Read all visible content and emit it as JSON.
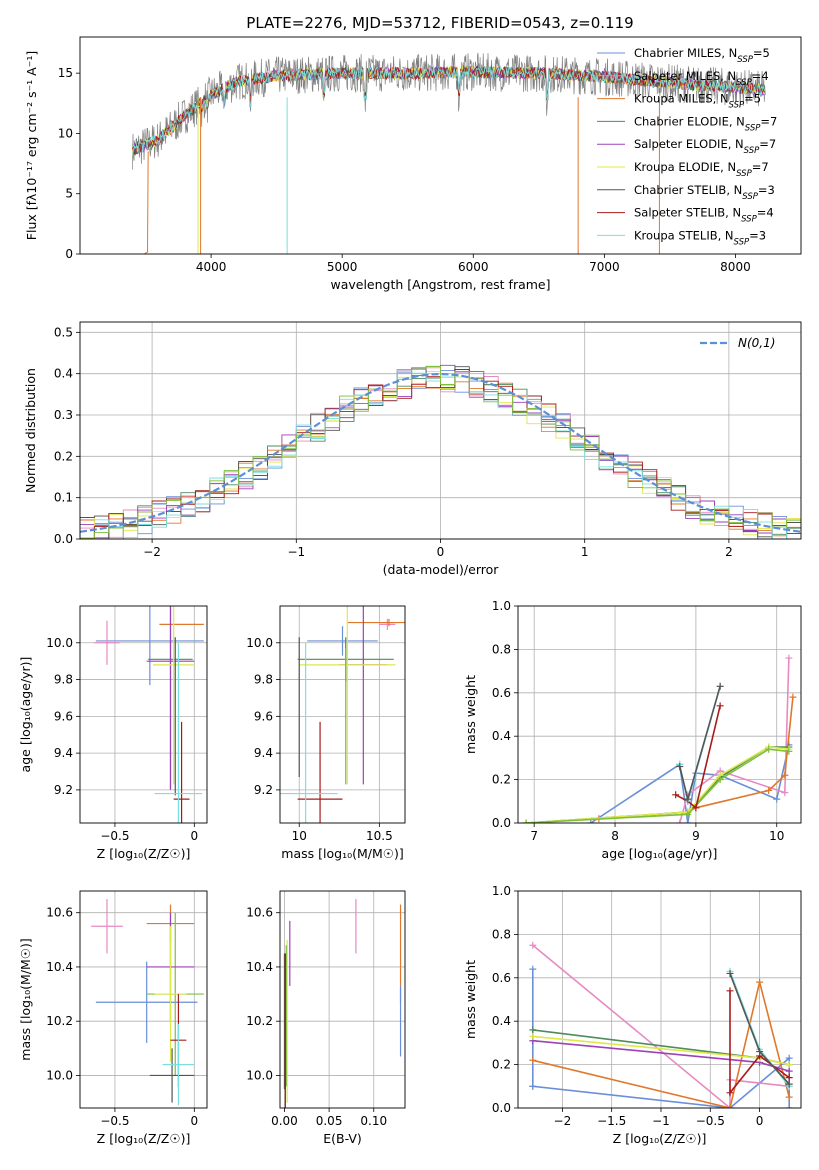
{
  "figure_title": "PLATE=2276, MJD=53712, FIBERID=0543, z=0.119",
  "palette": {
    "Chabrier MILES": "#6a8fd8",
    "Salpeter MILES": "#e78ac3",
    "Kroupa MILES": "#e0782c",
    "Chabrier ELODIE": "#4e8c5a",
    "Salpeter ELODIE": "#9b42b8",
    "Kroupa ELODIE": "#dde84a",
    "Chabrier STELIB": "#555555",
    "Salpeter STELIB": "#a81b1b",
    "Kroupa STELIB": "#7adfe0",
    "green2": "#7fbf3a",
    "normal_line": "#5b8fd6"
  },
  "chart_data": [
    {
      "id": "spectrum",
      "type": "line",
      "title": "PLATE=2276, MJD=53712, FIBERID=0543, z=0.119",
      "xlabel": "wavelength [Angstrom, rest frame]",
      "ylabel": "Flux [fλ10⁻¹⁷ erg cm⁻² s⁻¹ A⁻¹]",
      "xlim": [
        3000,
        8500
      ],
      "ylim": [
        0,
        18
      ],
      "xticks": [
        4000,
        5000,
        6000,
        7000,
        8000
      ],
      "yticks": [
        0,
        5,
        10,
        15
      ],
      "grid": false,
      "legend_position": "top-right",
      "legend": [
        {
          "label": "Chabrier MILES, N",
          "sub": "SSP",
          "eq": "=5"
        },
        {
          "label": "Salpeter MILES, N",
          "sub": "SSP",
          "eq": "=4"
        },
        {
          "label": "Kroupa MILES, N",
          "sub": "SSP",
          "eq": "=5"
        },
        {
          "label": "Chabrier ELODIE, N",
          "sub": "SSP",
          "eq": "=7"
        },
        {
          "label": "Salpeter ELODIE, N",
          "sub": "SSP",
          "eq": "=7"
        },
        {
          "label": "Kroupa ELODIE, N",
          "sub": "SSP",
          "eq": "=7"
        },
        {
          "label": "Chabrier STELIB, N",
          "sub": "SSP",
          "eq": "=3"
        },
        {
          "label": "Salpeter STELIB, N",
          "sub": "SSP",
          "eq": "=4"
        },
        {
          "label": "Kroupa STELIB, N",
          "sub": "SSP",
          "eq": "=3"
        }
      ],
      "x_range": [
        3400,
        8230
      ],
      "continuum": [
        [
          3400,
          8.6
        ],
        [
          3600,
          9.5
        ],
        [
          3800,
          11.5
        ],
        [
          4000,
          13.2
        ],
        [
          4200,
          14.3
        ],
        [
          4500,
          14.8
        ],
        [
          5000,
          15.0
        ],
        [
          5500,
          15.0
        ],
        [
          6000,
          15.1
        ],
        [
          6500,
          15.0
        ],
        [
          7000,
          14.7
        ],
        [
          7500,
          14.2
        ],
        [
          8000,
          13.8
        ],
        [
          8230,
          13.6
        ]
      ]
    },
    {
      "id": "residuals",
      "type": "step",
      "xlabel": "(data-model)/error",
      "ylabel": "Normed distribution",
      "xlim": [
        -2.5,
        2.5
      ],
      "ylim": [
        0,
        0.525
      ],
      "xticks": [
        -2,
        -1,
        0,
        1,
        2
      ],
      "yticks": [
        0.0,
        0.1,
        0.2,
        0.3,
        0.4,
        0.5
      ],
      "grid": true,
      "bin_width": 0.1,
      "legend_position": "top-right",
      "legend": [
        {
          "label": "N(0,1)"
        }
      ]
    },
    {
      "id": "age_vs_Z",
      "type": "errorbar",
      "xlabel": "Z [log₁₀(Z/Z☉)]",
      "ylabel": "age [log₁₀(age/yr)]",
      "xlim": [
        -0.72,
        0.08
      ],
      "ylim": [
        9.02,
        10.2
      ],
      "xticks": [
        -0.5,
        0.0
      ],
      "yticks": [
        9.2,
        9.4,
        9.6,
        9.8,
        10.0
      ],
      "grid": true,
      "points": [
        {
          "series": "Chabrier MILES",
          "x": -0.28,
          "xerr": 0.34,
          "y": 10.01,
          "yerr": 0.24
        },
        {
          "series": "Salpeter MILES",
          "x": -0.55,
          "xerr": 0.08,
          "y": 10.0,
          "yerr": 0.12
        },
        {
          "series": "Kroupa MILES",
          "x": -0.08,
          "xerr": 0.14,
          "y": 10.1,
          "yerr": 0.0
        },
        {
          "series": "Chabrier ELODIE",
          "x": -0.15,
          "xerr": 0.14,
          "y": 9.91,
          "yerr": 0.7
        },
        {
          "series": "Salpeter ELODIE",
          "x": -0.15,
          "xerr": 0.15,
          "y": 9.9,
          "yerr": 0.7
        },
        {
          "series": "Kroupa ELODIE",
          "x": -0.13,
          "xerr": 0.13,
          "y": 9.88,
          "yerr": 0.65
        },
        {
          "series": "Chabrier STELIB",
          "x": -0.12,
          "xerr": 0.0,
          "y": 9.6,
          "yerr": 0.43
        },
        {
          "series": "Salpeter STELIB",
          "x": -0.08,
          "xerr": 0.05,
          "y": 9.15,
          "yerr": 0.42
        },
        {
          "series": "Kroupa STELIB",
          "x": -0.1,
          "xerr": 0.15,
          "y": 9.18,
          "yerr": 0.82
        }
      ]
    },
    {
      "id": "age_vs_mass",
      "type": "errorbar",
      "xlabel": "mass [log₁₀(M/M☉)]",
      "ylabel": "",
      "xlim": [
        9.88,
        10.66
      ],
      "ylim": [
        9.02,
        10.2
      ],
      "xticks": [
        10.0,
        10.5
      ],
      "yticks": [
        9.2,
        9.4,
        9.6,
        9.8,
        10.0
      ],
      "grid": true,
      "points": [
        {
          "series": "Chabrier MILES",
          "x": 10.27,
          "xerr": 0.22,
          "y": 10.01,
          "yerr": 0.08
        },
        {
          "series": "Salpeter MILES",
          "x": 10.55,
          "xerr": 0.05,
          "y": 10.1,
          "yerr": 0.03
        },
        {
          "series": "Kroupa MILES",
          "x": 10.56,
          "xerr": 0.26,
          "y": 10.11,
          "yerr": 0.02
        },
        {
          "series": "Chabrier ELODIE",
          "x": 10.29,
          "xerr": 0.3,
          "y": 9.91,
          "yerr": 0.12
        },
        {
          "series": "Salpeter ELODIE",
          "x": 10.4,
          "xerr": 0.15,
          "y": 9.88,
          "yerr": 0.65
        },
        {
          "series": "Kroupa ELODIE",
          "x": 10.3,
          "xerr": 0.3,
          "y": 9.88,
          "yerr": 0.65
        },
        {
          "series": "Chabrier STELIB",
          "x": 10.0,
          "xerr": 0.0,
          "y": 9.65,
          "yerr": 0.38
        },
        {
          "series": "Salpeter STELIB",
          "x": 10.13,
          "xerr": 0.14,
          "y": 9.15,
          "yerr": 0.42
        },
        {
          "series": "Kroupa STELIB",
          "x": 10.04,
          "xerr": 0.2,
          "y": 9.18,
          "yerr": 0.82
        },
        {
          "series": "green2",
          "x": 10.29,
          "xerr": 0.0,
          "y": 9.6,
          "yerr": 0.37
        }
      ]
    },
    {
      "id": "mass_weight_vs_age",
      "type": "line",
      "xlabel": "age [log₁₀(age/yr)]",
      "ylabel": "mass weight",
      "xlim": [
        6.8,
        10.3
      ],
      "ylim": [
        0.0,
        1.0
      ],
      "xticks": [
        7,
        8,
        9,
        10
      ],
      "yticks": [
        0.0,
        0.2,
        0.4,
        0.6,
        0.8,
        1.0
      ],
      "grid": true,
      "series": [
        {
          "name": "Chabrier MILES",
          "points": [
            [
              7.7,
              0.0
            ],
            [
              8.8,
              0.27
            ],
            [
              8.9,
              0.0
            ],
            [
              9.0,
              0.23
            ],
            [
              9.3,
              0.22
            ],
            [
              10.0,
              0.11
            ],
            [
              10.15,
              0.36
            ]
          ]
        },
        {
          "name": "Salpeter MILES",
          "points": [
            [
              8.8,
              0.0
            ],
            [
              8.9,
              0.13
            ],
            [
              9.3,
              0.24
            ],
            [
              10.1,
              0.14
            ],
            [
              10.15,
              0.76
            ]
          ]
        },
        {
          "name": "Kroupa MILES",
          "points": [
            [
              7.8,
              0.02
            ],
            [
              8.9,
              0.05
            ],
            [
              9.0,
              0.07
            ],
            [
              9.9,
              0.15
            ],
            [
              10.1,
              0.22
            ],
            [
              10.2,
              0.58
            ]
          ]
        },
        {
          "name": "Chabrier ELODIE",
          "points": [
            [
              6.9,
              0.0
            ],
            [
              8.9,
              0.05
            ],
            [
              9.3,
              0.21
            ],
            [
              9.9,
              0.35
            ],
            [
              10.15,
              0.35
            ]
          ]
        },
        {
          "name": "Kroupa ELODIE",
          "points": [
            [
              6.9,
              0.0
            ],
            [
              8.9,
              0.05
            ],
            [
              9.3,
              0.22
            ],
            [
              9.9,
              0.35
            ],
            [
              10.15,
              0.34
            ]
          ]
        },
        {
          "name": "green2",
          "points": [
            [
              6.9,
              0.0
            ],
            [
              8.9,
              0.04
            ],
            [
              9.3,
              0.2
            ],
            [
              9.9,
              0.34
            ],
            [
              10.15,
              0.33
            ]
          ]
        },
        {
          "name": "Salpeter STELIB",
          "points": [
            [
              8.75,
              0.13
            ],
            [
              8.9,
              0.1
            ],
            [
              9.0,
              0.07
            ],
            [
              9.3,
              0.54
            ]
          ]
        },
        {
          "name": "Kroupa STELIB",
          "points": [
            [
              8.8,
              0.27
            ],
            [
              8.9,
              0.1
            ],
            [
              9.3,
              0.63
            ]
          ]
        },
        {
          "name": "Chabrier STELIB",
          "points": [
            [
              8.8,
              0.26
            ],
            [
              8.9,
              0.11
            ],
            [
              9.3,
              0.63
            ]
          ]
        }
      ]
    },
    {
      "id": "mass_vs_Z",
      "type": "errorbar",
      "xlabel": "Z [log₁₀(Z/Z☉)]",
      "ylabel": "mass [log₁₀(M/M☉)]",
      "xlim": [
        -0.72,
        0.08
      ],
      "ylim": [
        9.88,
        10.68
      ],
      "xticks": [
        -0.5,
        0.0
      ],
      "yticks": [
        10.0,
        10.2,
        10.4,
        10.6
      ],
      "grid": true,
      "points": [
        {
          "series": "Chabrier MILES",
          "x": -0.3,
          "xerr": 0.32,
          "y": 10.27,
          "yerr": 0.15
        },
        {
          "series": "Salpeter MILES",
          "x": -0.55,
          "xerr": 0.1,
          "y": 10.55,
          "yerr": 0.1
        },
        {
          "series": "Kroupa MILES",
          "x": -0.15,
          "xerr": 0.15,
          "y": 10.56,
          "yerr": 0.07
        },
        {
          "series": "green2",
          "x": -0.12,
          "xerr": 0.18,
          "y": 10.3,
          "yerr": 0.3
        },
        {
          "series": "Salpeter ELODIE",
          "x": -0.15,
          "xerr": 0.15,
          "y": 10.4,
          "yerr": 0.2
        },
        {
          "series": "Kroupa ELODIE",
          "x": -0.15,
          "xerr": 0.1,
          "y": 10.3,
          "yerr": 0.25
        },
        {
          "series": "Chabrier STELIB",
          "x": -0.14,
          "xerr": 0.14,
          "y": 10.0,
          "yerr": 0.1
        },
        {
          "series": "Salpeter STELIB",
          "x": -0.1,
          "xerr": 0.05,
          "y": 10.13,
          "yerr": 0.17
        },
        {
          "series": "Kroupa STELIB",
          "x": -0.1,
          "xerr": 0.1,
          "y": 10.04,
          "yerr": 0.15
        }
      ]
    },
    {
      "id": "mass_vs_ebv",
      "type": "errorbar",
      "xlabel": "E(B-V)",
      "ylabel": "",
      "xlim": [
        -0.005,
        0.135
      ],
      "ylim": [
        9.88,
        10.68
      ],
      "xticks": [
        0.0,
        0.05,
        0.1
      ],
      "xticklabels": [
        "0.00",
        "0.05",
        "0.10"
      ],
      "yticks": [
        10.0,
        10.2,
        10.4,
        10.6
      ],
      "grid": true,
      "points": [
        {
          "series": "Chabrier STELIB",
          "x": 0.0,
          "xerr": 0.0,
          "y": 10.2,
          "yerr": 0.25
        },
        {
          "series": "Kroupa ELODIE",
          "x": 0.003,
          "xerr": 0.0,
          "y": 10.2,
          "yerr": 0.3
        },
        {
          "series": "Salpeter ELODIE",
          "x": 0.006,
          "xerr": 0.0,
          "y": 10.45,
          "yerr": 0.12
        },
        {
          "series": "green2",
          "x": 0.002,
          "xerr": 0.0,
          "y": 10.22,
          "yerr": 0.26
        },
        {
          "series": "Salpeter STELIB",
          "x": 0.001,
          "xerr": 0.0,
          "y": 10.15,
          "yerr": 0.3
        },
        {
          "series": "Salpeter MILES",
          "x": 0.08,
          "xerr": 0.0,
          "y": 10.55,
          "yerr": 0.1
        },
        {
          "series": "Kroupa MILES",
          "x": 0.13,
          "xerr": 0.0,
          "y": 10.45,
          "yerr": 0.18
        },
        {
          "series": "Chabrier MILES",
          "x": 0.13,
          "xerr": 0.0,
          "y": 10.2,
          "yerr": 0.13
        }
      ]
    },
    {
      "id": "mass_weight_vs_Z",
      "type": "line",
      "xlabel": "Z [log₁₀(Z/Z☉)]",
      "ylabel": "mass weight",
      "xlim": [
        -2.45,
        0.42
      ],
      "ylim": [
        0.0,
        1.0
      ],
      "xticks": [
        -2.0,
        -1.5,
        -1.0,
        -0.5,
        0.0
      ],
      "yticks": [
        0.0,
        0.2,
        0.4,
        0.6,
        0.8,
        1.0
      ],
      "grid": true,
      "series": [
        {
          "name": "Chabrier MILES",
          "points": [
            [
              -2.3,
              0.1
            ],
            [
              -2.3,
              0.64
            ],
            [
              -2.3,
              0.1
            ],
            [
              -0.3,
              0.0
            ],
            [
              0.3,
              0.23
            ],
            [
              0.3,
              0.0
            ]
          ]
        },
        {
          "name": "Salpeter MILES",
          "points": [
            [
              -2.3,
              0.75
            ],
            [
              -0.3,
              0.0
            ],
            [
              -0.3,
              0.13
            ],
            [
              0.3,
              0.1
            ]
          ]
        },
        {
          "name": "Kroupa MILES",
          "points": [
            [
              -2.3,
              0.22
            ],
            [
              -0.3,
              0.0
            ],
            [
              0.0,
              0.58
            ],
            [
              0.3,
              0.05
            ]
          ]
        },
        {
          "name": "Chabrier ELODIE",
          "points": [
            [
              -2.3,
              0.36
            ],
            [
              0.0,
              0.23
            ],
            [
              0.3,
              0.2
            ]
          ]
        },
        {
          "name": "Salpeter ELODIE",
          "points": [
            [
              -2.3,
              0.31
            ],
            [
              0.0,
              0.21
            ],
            [
              0.3,
              0.17
            ]
          ]
        },
        {
          "name": "Kroupa ELODIE",
          "points": [
            [
              -2.3,
              0.33
            ],
            [
              0.0,
              0.23
            ],
            [
              0.3,
              0.2
            ]
          ]
        },
        {
          "name": "Salpeter STELIB",
          "points": [
            [
              -0.3,
              0.54
            ],
            [
              -0.3,
              0.07
            ],
            [
              0.0,
              0.24
            ],
            [
              0.3,
              0.14
            ]
          ]
        },
        {
          "name": "Kroupa STELIB",
          "points": [
            [
              -0.3,
              0.63
            ],
            [
              0.0,
              0.27
            ],
            [
              0.3,
              0.1
            ]
          ]
        },
        {
          "name": "Chabrier STELIB",
          "points": [
            [
              -0.3,
              0.62
            ],
            [
              0.0,
              0.26
            ],
            [
              0.3,
              0.11
            ]
          ]
        }
      ]
    }
  ]
}
